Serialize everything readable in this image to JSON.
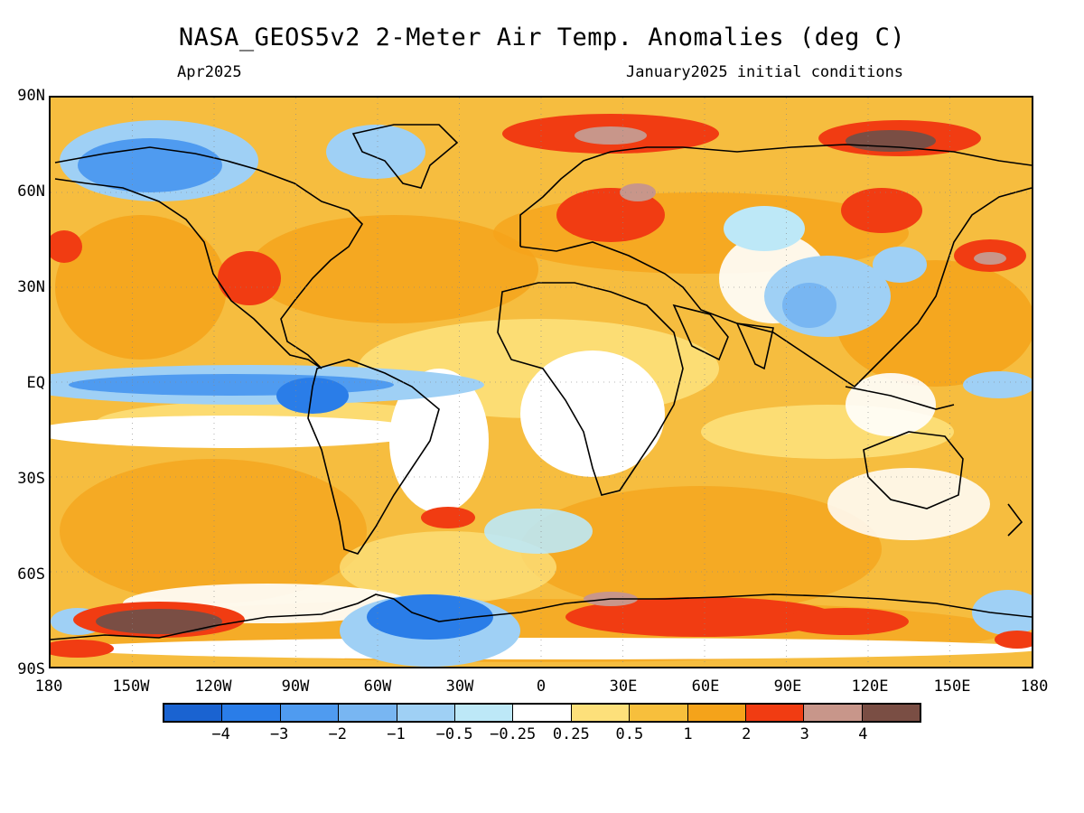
{
  "title": "NASA_GEOS5v2 2-Meter Air Temp. Anomalies (deg C)",
  "subtitle_left": "Apr2025",
  "subtitle_right": "January2025 initial conditions",
  "lat_labels": [
    "90N",
    "60N",
    "30N",
    "EQ",
    "30S",
    "60S",
    "90S"
  ],
  "lon_labels": [
    "180",
    "150W",
    "120W",
    "90W",
    "60W",
    "30W",
    "0",
    "30E",
    "60E",
    "90E",
    "120E",
    "150E",
    "180"
  ],
  "colorbar": {
    "colors": [
      "#1a63d1",
      "#2a7de8",
      "#4f9bf0",
      "#78b6f2",
      "#9fd0f5",
      "#bde8f7",
      "#ffffff",
      "#fde07a",
      "#f7bf3c",
      "#f5a31a",
      "#f13c12",
      "#c8968a",
      "#7a4e44"
    ],
    "labels": [
      "-4",
      "-3",
      "-2",
      "-1",
      "-0.5",
      "-0.25",
      "0.25",
      "0.5",
      "1",
      "2",
      "3",
      "4"
    ]
  },
  "map_colors": {
    "background": "#f6bd3f",
    "land_outline": "#000000"
  }
}
